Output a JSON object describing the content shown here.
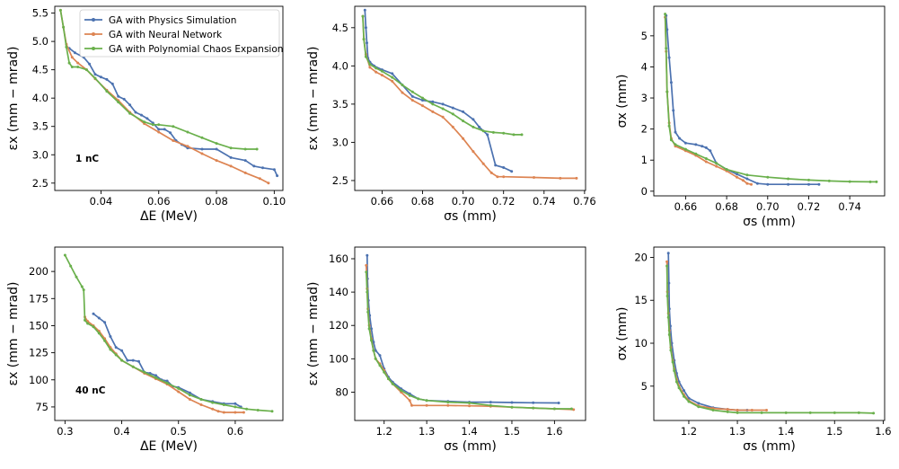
{
  "chart_data": [
    {
      "type": "line",
      "xlabel": "ΔE (MeV)",
      "ylabel": "εx (mm − mrad)",
      "annotation": "1 nC",
      "xlim": [
        0.024,
        0.103
      ],
      "ylim": [
        2.37,
        5.62
      ],
      "xticks": [
        0.04,
        0.06,
        0.08,
        0.1
      ],
      "xtick_labels": [
        "0.04",
        "0.06",
        "0.08",
        "0.10"
      ],
      "yticks": [
        2.5,
        3.0,
        3.5,
        4.0,
        4.5,
        5.0,
        5.5
      ],
      "ytick_labels": [
        "2.5",
        "3.0",
        "3.5",
        "4.0",
        "4.5",
        "5.0",
        "5.5"
      ],
      "legend": [
        "GA with Physics Simulation",
        "GA with Neural Network",
        "GA with Polynomial Chaos Expansion"
      ],
      "series": [
        {
          "name": "GA with Physics Simulation",
          "x": [
            0.029,
            0.031,
            0.034,
            0.036,
            0.038,
            0.04,
            0.042,
            0.044,
            0.046,
            0.048,
            0.05,
            0.052,
            0.054,
            0.056,
            0.058,
            0.06,
            0.062,
            0.064,
            0.066,
            0.068,
            0.07,
            0.075,
            0.08,
            0.085,
            0.09,
            0.093,
            0.096,
            0.1,
            0.101
          ],
          "y": [
            4.88,
            4.8,
            4.72,
            4.6,
            4.42,
            4.37,
            4.33,
            4.25,
            4.03,
            3.98,
            3.88,
            3.75,
            3.7,
            3.64,
            3.56,
            3.45,
            3.45,
            3.39,
            3.25,
            3.18,
            3.12,
            3.1,
            3.1,
            2.95,
            2.9,
            2.8,
            2.77,
            2.74,
            2.63
          ]
        },
        {
          "name": "GA with Neural Network",
          "x": [
            0.026,
            0.027,
            0.028,
            0.03,
            0.032,
            0.035,
            0.038,
            0.042,
            0.046,
            0.05,
            0.055,
            0.06,
            0.065,
            0.07,
            0.075,
            0.08,
            0.085,
            0.09,
            0.095,
            0.098
          ],
          "y": [
            5.55,
            5.25,
            4.95,
            4.72,
            4.62,
            4.5,
            4.34,
            4.14,
            3.96,
            3.75,
            3.55,
            3.4,
            3.25,
            3.15,
            3.02,
            2.9,
            2.8,
            2.68,
            2.58,
            2.5
          ]
        },
        {
          "name": "GA with Polynomial Chaos Expansion",
          "x": [
            0.026,
            0.027,
            0.028,
            0.029,
            0.03,
            0.032,
            0.035,
            0.038,
            0.042,
            0.046,
            0.05,
            0.055,
            0.058,
            0.06,
            0.065,
            0.07,
            0.075,
            0.08,
            0.085,
            0.09,
            0.094
          ],
          "y": [
            5.55,
            5.25,
            4.9,
            4.62,
            4.55,
            4.55,
            4.5,
            4.35,
            4.12,
            3.93,
            3.73,
            3.58,
            3.53,
            3.53,
            3.5,
            3.4,
            3.3,
            3.2,
            3.12,
            3.1,
            3.1
          ]
        }
      ]
    },
    {
      "type": "line",
      "xlabel": "σs (mm)",
      "ylabel": "εx (mm − mrad)",
      "xlim": [
        0.6465,
        0.7605
      ],
      "ylim": [
        2.37,
        4.78
      ],
      "xticks": [
        0.66,
        0.68,
        0.7,
        0.72,
        0.74,
        0.76
      ],
      "xtick_labels": [
        "0.66",
        "0.68",
        "0.70",
        "0.72",
        "0.74",
        "0.76"
      ],
      "yticks": [
        2.5,
        3.0,
        3.5,
        4.0,
        4.5
      ],
      "ytick_labels": [
        "2.5",
        "3.0",
        "3.5",
        "4.0",
        "4.5"
      ],
      "series": [
        {
          "name": "GA with Physics Simulation",
          "x": [
            0.6515,
            0.652,
            0.6525,
            0.653,
            0.654,
            0.656,
            0.66,
            0.665,
            0.67,
            0.675,
            0.68,
            0.685,
            0.69,
            0.695,
            0.7,
            0.705,
            0.708,
            0.712,
            0.716,
            0.72,
            0.724
          ],
          "y": [
            4.73,
            4.5,
            4.3,
            4.1,
            4.05,
            4.0,
            3.95,
            3.9,
            3.75,
            3.6,
            3.55,
            3.53,
            3.5,
            3.45,
            3.4,
            3.3,
            3.2,
            3.1,
            2.7,
            2.67,
            2.62
          ]
        },
        {
          "name": "GA with Neural Network",
          "x": [
            0.6505,
            0.651,
            0.652,
            0.654,
            0.657,
            0.66,
            0.665,
            0.67,
            0.675,
            0.68,
            0.685,
            0.69,
            0.695,
            0.7,
            0.705,
            0.71,
            0.714,
            0.717,
            0.72,
            0.735,
            0.748,
            0.756
          ],
          "y": [
            4.65,
            4.35,
            4.15,
            3.98,
            3.92,
            3.88,
            3.8,
            3.65,
            3.55,
            3.48,
            3.4,
            3.33,
            3.2,
            3.05,
            2.88,
            2.72,
            2.6,
            2.55,
            2.55,
            2.54,
            2.53,
            2.53
          ]
        },
        {
          "name": "GA with Polynomial Chaos Expansion",
          "x": [
            0.6505,
            0.651,
            0.652,
            0.654,
            0.657,
            0.66,
            0.665,
            0.67,
            0.675,
            0.68,
            0.685,
            0.69,
            0.695,
            0.7,
            0.705,
            0.71,
            0.715,
            0.72,
            0.725,
            0.729
          ],
          "y": [
            4.65,
            4.35,
            4.12,
            4.02,
            3.97,
            3.93,
            3.85,
            3.75,
            3.66,
            3.58,
            3.5,
            3.44,
            3.37,
            3.28,
            3.2,
            3.15,
            3.13,
            3.12,
            3.1,
            3.1
          ]
        }
      ]
    },
    {
      "type": "line",
      "xlabel": "σs (mm)",
      "ylabel": "σx (mm)",
      "xlim": [
        0.6445,
        0.757
      ],
      "ylim": [
        -0.15,
        5.95
      ],
      "xticks": [
        0.66,
        0.68,
        0.7,
        0.72,
        0.74
      ],
      "xtick_labels": [
        "0.66",
        "0.68",
        "0.70",
        "0.72",
        "0.74"
      ],
      "yticks": [
        0,
        1,
        2,
        3,
        4,
        5
      ],
      "ytick_labels": [
        "0",
        "1",
        "2",
        "3",
        "4",
        "5"
      ],
      "series": [
        {
          "name": "GA with Physics Simulation",
          "x": [
            0.6505,
            0.651,
            0.652,
            0.653,
            0.654,
            0.655,
            0.657,
            0.66,
            0.665,
            0.668,
            0.67,
            0.672,
            0.675,
            0.68,
            0.685,
            0.69,
            0.695,
            0.7,
            0.71,
            0.72,
            0.725
          ],
          "y": [
            5.65,
            5.2,
            4.3,
            3.5,
            2.6,
            1.9,
            1.7,
            1.55,
            1.5,
            1.45,
            1.4,
            1.3,
            0.9,
            0.7,
            0.55,
            0.4,
            0.25,
            0.22,
            0.22,
            0.22,
            0.22
          ]
        },
        {
          "name": "GA with Neural Network",
          "x": [
            0.65,
            0.6505,
            0.651,
            0.652,
            0.653,
            0.655,
            0.66,
            0.665,
            0.67,
            0.675,
            0.68,
            0.685,
            0.688,
            0.69,
            0.692
          ],
          "y": [
            5.6,
            4.5,
            3.2,
            2.2,
            1.7,
            1.45,
            1.3,
            1.15,
            0.95,
            0.8,
            0.65,
            0.45,
            0.35,
            0.25,
            0.22
          ]
        },
        {
          "name": "GA with Polynomial Chaos Expansion",
          "x": [
            0.65,
            0.6505,
            0.651,
            0.652,
            0.653,
            0.655,
            0.66,
            0.665,
            0.67,
            0.675,
            0.68,
            0.69,
            0.7,
            0.71,
            0.72,
            0.73,
            0.74,
            0.75,
            0.753
          ],
          "y": [
            5.7,
            4.6,
            3.2,
            2.1,
            1.65,
            1.5,
            1.35,
            1.2,
            1.05,
            0.9,
            0.7,
            0.52,
            0.45,
            0.4,
            0.36,
            0.33,
            0.31,
            0.3,
            0.3
          ]
        }
      ]
    },
    {
      "type": "line",
      "xlabel": "ΔE (MeV)",
      "ylabel": "εx (mm − mrad)",
      "annotation": "40 nC",
      "xlim": [
        0.282,
        0.684
      ],
      "ylim": [
        62.5,
        222.5
      ],
      "xticks": [
        0.3,
        0.4,
        0.5,
        0.6
      ],
      "xtick_labels": [
        "0.3",
        "0.4",
        "0.5",
        "0.6"
      ],
      "yticks": [
        75,
        100,
        125,
        150,
        175,
        200
      ],
      "ytick_labels": [
        "75",
        "100",
        "125",
        "150",
        "175",
        "200"
      ],
      "series": [
        {
          "name": "GA with Physics Simulation",
          "x": [
            0.35,
            0.36,
            0.37,
            0.38,
            0.39,
            0.4,
            0.41,
            0.42,
            0.43,
            0.44,
            0.45,
            0.46,
            0.47,
            0.48,
            0.49,
            0.5,
            0.52,
            0.54,
            0.56,
            0.58,
            0.6,
            0.61
          ],
          "y": [
            161,
            157,
            153,
            140,
            130,
            127,
            118,
            118,
            117,
            107,
            106,
            104,
            100,
            99,
            94,
            93,
            88,
            82,
            80,
            78,
            78,
            75
          ]
        },
        {
          "name": "GA with Neural Network",
          "x": [
            0.335,
            0.34,
            0.35,
            0.36,
            0.37,
            0.38,
            0.39,
            0.4,
            0.42,
            0.44,
            0.46,
            0.48,
            0.5,
            0.52,
            0.54,
            0.56,
            0.57,
            0.58,
            0.6,
            0.615
          ],
          "y": [
            158,
            154,
            150,
            145,
            138,
            130,
            124,
            118,
            112,
            106,
            101,
            96,
            89,
            82,
            77,
            73,
            71,
            70,
            70,
            70
          ]
        },
        {
          "name": "GA with Polynomial Chaos Expansion",
          "x": [
            0.3,
            0.31,
            0.32,
            0.33,
            0.333,
            0.335,
            0.34,
            0.35,
            0.36,
            0.37,
            0.38,
            0.39,
            0.4,
            0.42,
            0.44,
            0.46,
            0.48,
            0.5,
            0.52,
            0.54,
            0.56,
            0.58,
            0.6,
            0.62,
            0.64,
            0.665
          ],
          "y": [
            215,
            205,
            195,
            186,
            183,
            155,
            152,
            149,
            143,
            136,
            128,
            123,
            118,
            112,
            107,
            102,
            97,
            92,
            86,
            82,
            79,
            77,
            75,
            73,
            72,
            71
          ]
        }
      ]
    },
    {
      "type": "line",
      "xlabel": "σs (mm)",
      "ylabel": "εx (mm − mrad)",
      "xlim": [
        1.131,
        1.673
      ],
      "ylim": [
        63,
        167
      ],
      "xticks": [
        1.2,
        1.3,
        1.4,
        1.5,
        1.6
      ],
      "xtick_labels": [
        "1.2",
        "1.3",
        "1.4",
        "1.5",
        "1.6"
      ],
      "yticks": [
        80,
        100,
        120,
        140,
        160
      ],
      "ytick_labels": [
        "80",
        "100",
        "120",
        "140",
        "160"
      ],
      "series": [
        {
          "name": "GA with Physics Simulation",
          "x": [
            1.16,
            1.161,
            1.163,
            1.166,
            1.17,
            1.175,
            1.18,
            1.19,
            1.2,
            1.21,
            1.22,
            1.24,
            1.26,
            1.28,
            1.3,
            1.35,
            1.4,
            1.45,
            1.5,
            1.55,
            1.61
          ],
          "y": [
            162,
            148,
            135,
            126,
            118,
            110,
            105,
            102,
            94,
            89,
            86,
            82,
            79,
            76,
            75,
            74.5,
            74,
            74,
            73.8,
            73.6,
            73.5
          ]
        },
        {
          "name": "GA with Neural Network",
          "x": [
            1.158,
            1.16,
            1.162,
            1.165,
            1.17,
            1.175,
            1.18,
            1.19,
            1.2,
            1.21,
            1.22,
            1.24,
            1.26,
            1.265,
            1.3,
            1.35,
            1.4,
            1.45,
            1.5,
            1.55,
            1.6,
            1.645
          ],
          "y": [
            156,
            142,
            130,
            120,
            112,
            105,
            100,
            97,
            93,
            88,
            85,
            80,
            75,
            72,
            72,
            72,
            71.8,
            71.5,
            71,
            70.5,
            70,
            69.5
          ]
        },
        {
          "name": "GA with Polynomial Chaos Expansion",
          "x": [
            1.158,
            1.16,
            1.162,
            1.165,
            1.17,
            1.175,
            1.18,
            1.19,
            1.2,
            1.21,
            1.22,
            1.24,
            1.26,
            1.28,
            1.3,
            1.35,
            1.4,
            1.45,
            1.5,
            1.55,
            1.6,
            1.64
          ],
          "y": [
            152,
            140,
            128,
            118,
            111,
            105,
            100,
            96,
            92,
            88,
            85,
            81,
            78,
            76,
            75,
            74,
            73.5,
            72,
            71,
            70.5,
            70,
            70
          ]
        }
      ]
    },
    {
      "type": "line",
      "xlabel": "σs (mm)",
      "ylabel": "σx (mm)",
      "xlim": [
        1.128,
        1.603
      ],
      "ylim": [
        1.0,
        21.2
      ],
      "xticks": [
        1.2,
        1.3,
        1.4,
        1.5,
        1.6
      ],
      "xtick_labels": [
        "1.2",
        "1.3",
        "1.4",
        "1.5",
        "1.6"
      ],
      "yticks": [
        5,
        10,
        15,
        20
      ],
      "ytick_labels": [
        "5",
        "10",
        "15",
        "20"
      ],
      "series": [
        {
          "name": "GA with Physics Simulation",
          "x": [
            1.158,
            1.159,
            1.16,
            1.162,
            1.165,
            1.17,
            1.175,
            1.18,
            1.19,
            1.2,
            1.22,
            1.25,
            1.28,
            1.3,
            1.32
          ],
          "y": [
            20.5,
            17,
            14,
            12,
            10,
            8,
            6.5,
            5.5,
            4.5,
            3.6,
            3.0,
            2.5,
            2.3,
            2.2,
            2.2
          ]
        },
        {
          "name": "GA with Neural Network",
          "x": [
            1.155,
            1.156,
            1.158,
            1.16,
            1.163,
            1.167,
            1.17,
            1.175,
            1.18,
            1.19,
            1.2,
            1.22,
            1.25,
            1.28,
            1.3,
            1.33,
            1.36
          ],
          "y": [
            19.5,
            16,
            13.5,
            11.5,
            9.5,
            8,
            7,
            5.8,
            5,
            4,
            3.3,
            2.7,
            2.4,
            2.3,
            2.2,
            2.2,
            2.2
          ]
        },
        {
          "name": "GA with Polynomial Chaos Expansion",
          "x": [
            1.155,
            1.156,
            1.158,
            1.16,
            1.163,
            1.167,
            1.17,
            1.175,
            1.18,
            1.19,
            1.2,
            1.22,
            1.25,
            1.28,
            1.3,
            1.35,
            1.4,
            1.45,
            1.5,
            1.55,
            1.58
          ],
          "y": [
            19,
            15.5,
            13,
            11,
            9.2,
            7.8,
            6.8,
            5.5,
            4.8,
            3.8,
            3.2,
            2.6,
            2.2,
            2.0,
            1.9,
            1.9,
            1.9,
            1.9,
            1.9,
            1.9,
            1.85
          ]
        }
      ]
    }
  ],
  "colors": [
    "#4c72b0",
    "#dd8452",
    "#6ab04c"
  ]
}
